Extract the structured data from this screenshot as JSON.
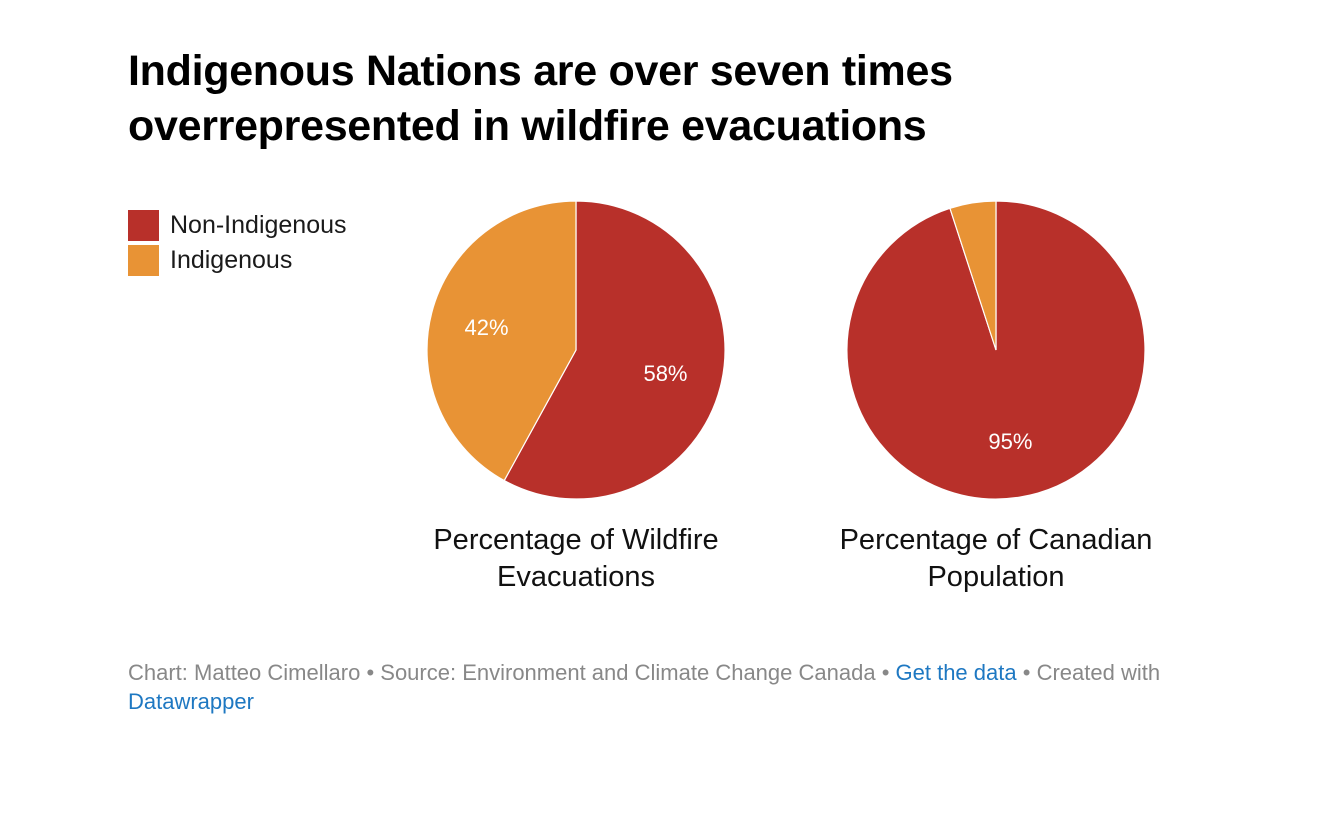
{
  "title": "Indigenous Nations are over seven times overrepresented in wildfire evacuations",
  "legend": [
    {
      "label": "Non-Indigenous",
      "color": "#b8302a"
    },
    {
      "label": "Indigenous",
      "color": "#e89335"
    }
  ],
  "chart_data": [
    {
      "type": "pie",
      "caption": "Percentage of Wildfire Evacuations",
      "slices": [
        {
          "name": "Non-Indigenous",
          "value": 58,
          "label": "58%",
          "color": "#b8302a"
        },
        {
          "name": "Indigenous",
          "value": 42,
          "label": "42%",
          "color": "#e89335"
        }
      ]
    },
    {
      "type": "pie",
      "caption": "Percentage of Canadian Population",
      "slices": [
        {
          "name": "Non-Indigenous",
          "value": 95,
          "label": "95%",
          "color": "#b8302a"
        },
        {
          "name": "Indigenous",
          "value": 5,
          "label": "",
          "color": "#e89335"
        }
      ]
    }
  ],
  "footer": {
    "chart_by": "Chart: Matteo Cimellaro",
    "source": "Source: Environment and Climate Change Canada",
    "get_data": "Get the data",
    "created": "Created with",
    "datawrapper": "Datawrapper",
    "separator": "•"
  }
}
